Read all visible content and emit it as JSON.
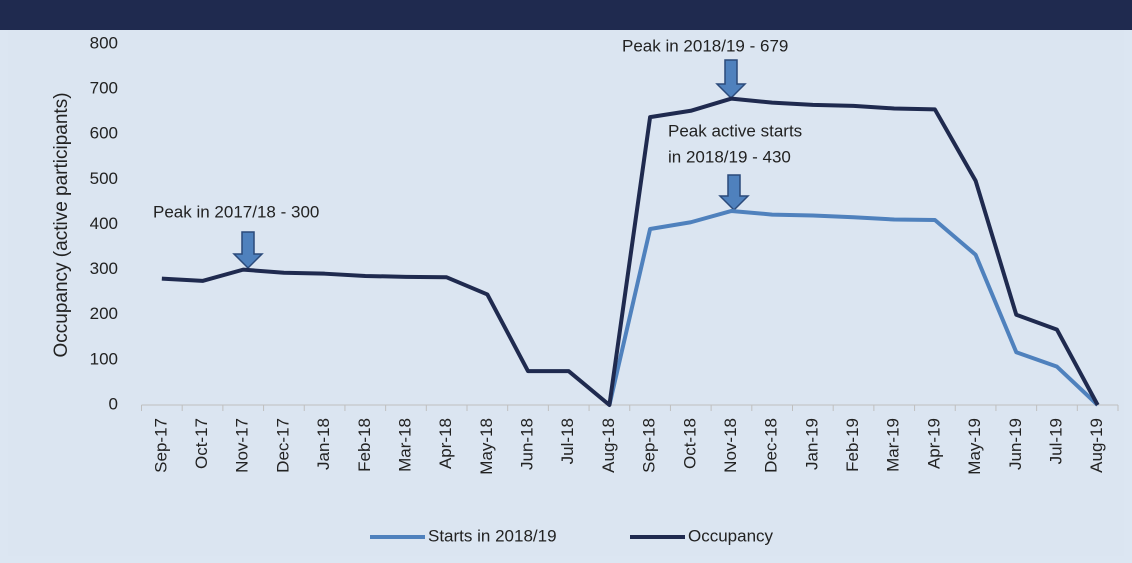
{
  "chart_data": {
    "type": "line",
    "y_label": "Occupancy (active participants)",
    "categories": [
      "Sep-17",
      "Oct-17",
      "Nov-17",
      "Dec-17",
      "Jan-18",
      "Feb-18",
      "Mar-18",
      "Apr-18",
      "May-18",
      "Jun-18",
      "Jul-18",
      "Aug-18",
      "Sep-18",
      "Oct-18",
      "Nov-18",
      "Dec-18",
      "Jan-19",
      "Feb-19",
      "Mar-19",
      "Apr-19",
      "May-19",
      "Jun-19",
      "Jul-19",
      "Aug-19"
    ],
    "series": [
      {
        "name": "Starts in 2018/19",
        "color": "#4f81bd",
        "values": [
          null,
          null,
          null,
          null,
          null,
          null,
          null,
          null,
          null,
          null,
          null,
          0,
          390,
          405,
          430,
          422,
          420,
          416,
          411,
          410,
          333,
          117,
          85,
          0
        ]
      },
      {
        "name": "Occupancy",
        "color": "#1f2a4f",
        "values": [
          280,
          275,
          300,
          293,
          291,
          286,
          284,
          283,
          245,
          75,
          75,
          0,
          638,
          652,
          679,
          670,
          665,
          663,
          657,
          655,
          497,
          200,
          167,
          0
        ]
      }
    ],
    "ylim": [
      0,
      800
    ],
    "yticks": [
      0,
      100,
      200,
      300,
      400,
      500,
      600,
      700,
      800
    ],
    "annotations": [
      {
        "text": [
          "Peak in 2017/18 - 300"
        ]
      },
      {
        "text": [
          "Peak in 2018/19 - 679"
        ]
      },
      {
        "text": [
          "Peak  active  starts",
          "in 2018/19 - 430"
        ]
      }
    ],
    "legend": "bottom"
  }
}
